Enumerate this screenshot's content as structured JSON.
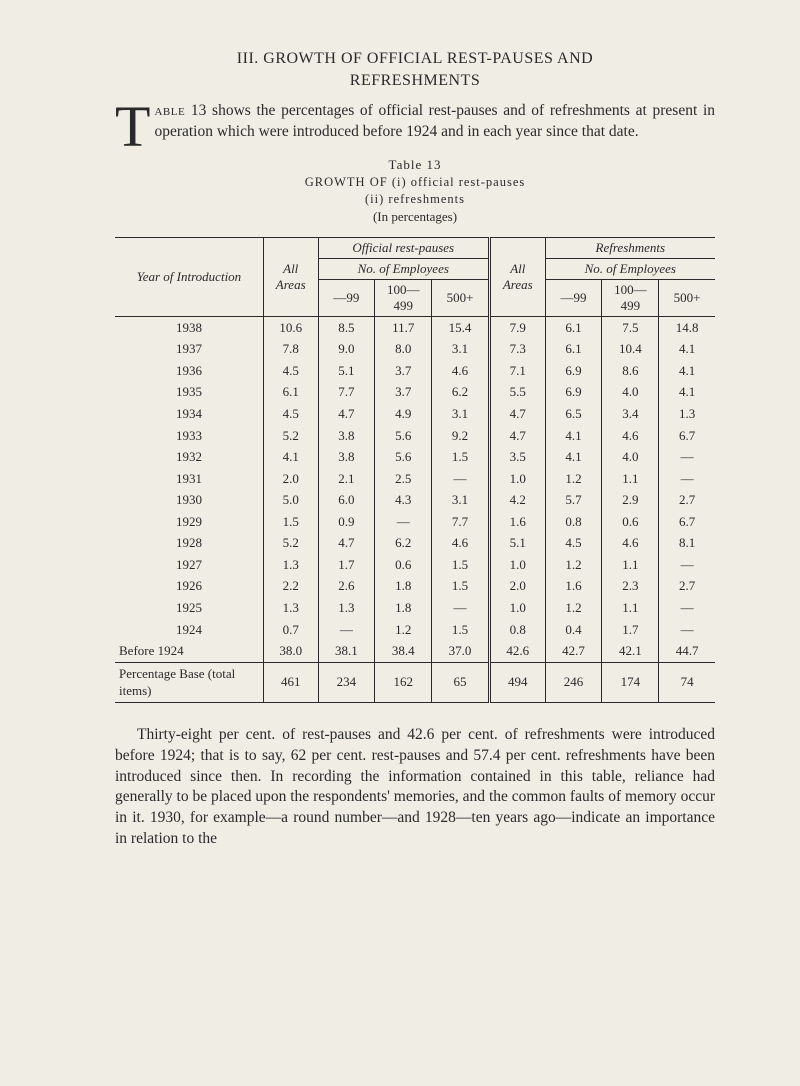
{
  "section": {
    "numbered_title": "III. GROWTH OF OFFICIAL REST-PAUSES AND",
    "subtitle": "REFRESHMENTS",
    "intro": {
      "dropcap": "T",
      "first_word_rest": "able",
      "text_rest": " 13 shows the percentages of official rest-pauses and of refreshments at present in operation which were introduced before 1924 and in each year since that date."
    }
  },
  "table_meta": {
    "label": "Table 13",
    "growth_of": "GROWTH OF",
    "line_i": "(i) official rest-pauses",
    "line_ii": "(ii) refreshments",
    "in_pct": "(In percentages)"
  },
  "headers": {
    "year_intro": "Year of Introduction",
    "all_areas": "All Areas",
    "official": "Official rest-pauses",
    "refreshments": "Refreshments",
    "no_employees": "No. of Employees",
    "c1": "—99",
    "c2_top": "100—",
    "c2_bot": "499",
    "c3": "500+"
  },
  "rows": [
    {
      "year": "1938",
      "a1": "10.6",
      "p1": "8.5",
      "p2": "11.7",
      "p3": "15.4",
      "a2": "7.9",
      "r1": "6.1",
      "r2": "7.5",
      "r3": "14.8"
    },
    {
      "year": "1937",
      "a1": "7.8",
      "p1": "9.0",
      "p2": "8.0",
      "p3": "3.1",
      "a2": "7.3",
      "r1": "6.1",
      "r2": "10.4",
      "r3": "4.1"
    },
    {
      "year": "1936",
      "a1": "4.5",
      "p1": "5.1",
      "p2": "3.7",
      "p3": "4.6",
      "a2": "7.1",
      "r1": "6.9",
      "r2": "8.6",
      "r3": "4.1"
    },
    {
      "year": "1935",
      "a1": "6.1",
      "p1": "7.7",
      "p2": "3.7",
      "p3": "6.2",
      "a2": "5.5",
      "r1": "6.9",
      "r2": "4.0",
      "r3": "4.1"
    },
    {
      "year": "1934",
      "a1": "4.5",
      "p1": "4.7",
      "p2": "4.9",
      "p3": "3.1",
      "a2": "4.7",
      "r1": "6.5",
      "r2": "3.4",
      "r3": "1.3"
    },
    {
      "year": "1933",
      "a1": "5.2",
      "p1": "3.8",
      "p2": "5.6",
      "p3": "9.2",
      "a2": "4.7",
      "r1": "4.1",
      "r2": "4.6",
      "r3": "6.7"
    },
    {
      "year": "1932",
      "a1": "4.1",
      "p1": "3.8",
      "p2": "5.6",
      "p3": "1.5",
      "a2": "3.5",
      "r1": "4.1",
      "r2": "4.0",
      "r3": "—"
    },
    {
      "year": "1931",
      "a1": "2.0",
      "p1": "2.1",
      "p2": "2.5",
      "p3": "—",
      "a2": "1.0",
      "r1": "1.2",
      "r2": "1.1",
      "r3": "—"
    },
    {
      "year": "1930",
      "a1": "5.0",
      "p1": "6.0",
      "p2": "4.3",
      "p3": "3.1",
      "a2": "4.2",
      "r1": "5.7",
      "r2": "2.9",
      "r3": "2.7"
    },
    {
      "year": "1929",
      "a1": "1.5",
      "p1": "0.9",
      "p2": "—",
      "p3": "7.7",
      "a2": "1.6",
      "r1": "0.8",
      "r2": "0.6",
      "r3": "6.7"
    },
    {
      "year": "1928",
      "a1": "5.2",
      "p1": "4.7",
      "p2": "6.2",
      "p3": "4.6",
      "a2": "5.1",
      "r1": "4.5",
      "r2": "4.6",
      "r3": "8.1"
    },
    {
      "year": "1927",
      "a1": "1.3",
      "p1": "1.7",
      "p2": "0.6",
      "p3": "1.5",
      "a2": "1.0",
      "r1": "1.2",
      "r2": "1.1",
      "r3": "—"
    },
    {
      "year": "1926",
      "a1": "2.2",
      "p1": "2.6",
      "p2": "1.8",
      "p3": "1.5",
      "a2": "2.0",
      "r1": "1.6",
      "r2": "2.3",
      "r3": "2.7"
    },
    {
      "year": "1925",
      "a1": "1.3",
      "p1": "1.3",
      "p2": "1.8",
      "p3": "—",
      "a2": "1.0",
      "r1": "1.2",
      "r2": "1.1",
      "r3": "—"
    },
    {
      "year": "1924",
      "a1": "0.7",
      "p1": "—",
      "p2": "1.2",
      "p3": "1.5",
      "a2": "0.8",
      "r1": "0.4",
      "r2": "1.7",
      "r3": "—"
    },
    {
      "year": "Before 1924",
      "a1": "38.0",
      "p1": "38.1",
      "p2": "38.4",
      "p3": "37.0",
      "a2": "42.6",
      "r1": "42.7",
      "r2": "42.1",
      "r3": "44.7"
    }
  ],
  "footer_row": {
    "label": "Percentage Base (total items)",
    "a1": "461",
    "p1": "234",
    "p2": "162",
    "p3": "65",
    "a2": "494",
    "r1": "246",
    "r2": "174",
    "r3": "74"
  },
  "closing": "Thirty-eight per cent. of rest-pauses and 42.6 per cent. of refreshments were introduced before 1924; that is to say, 62 per cent. rest-pauses and 57.4 per cent. refreshments have been introduced since then. In recording the information contained in this table, reliance had generally to be placed upon the respondents' memories, and the common faults of memory occur in it. 1930, for example—a round number—and 1928—ten years ago—indicate an importance in relation to the"
}
